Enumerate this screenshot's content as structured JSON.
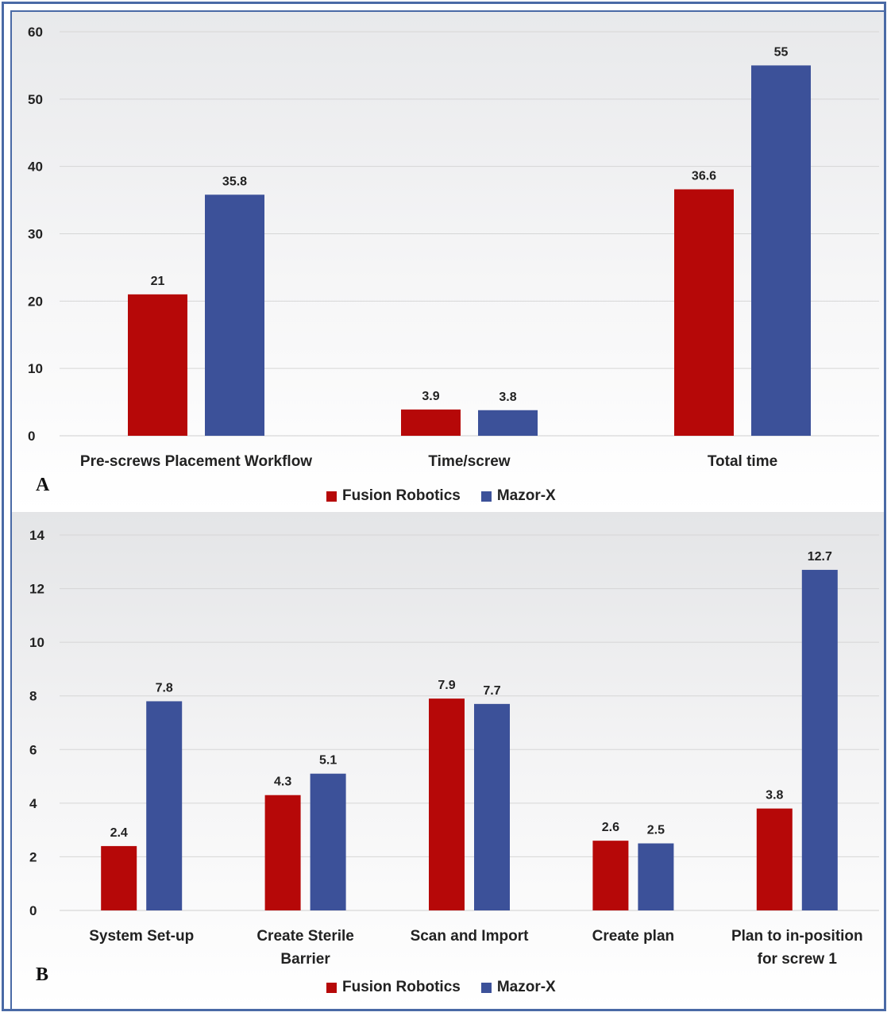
{
  "colors": {
    "fusion": "#b60808",
    "mazor": "#3c5199",
    "grid": "#d6d6d6",
    "frame": "#4a6aa6"
  },
  "panels": {
    "a": {
      "letter": "A"
    },
    "b": {
      "letter": "B"
    }
  },
  "legend": {
    "fusion": "Fusion Robotics",
    "mazor": "Mazor-X"
  },
  "chart_data": [
    {
      "type": "bar",
      "title": "",
      "xlabel": "",
      "ylabel": "",
      "ylim": [
        0,
        60
      ],
      "yticks": [
        "0",
        "10",
        "20",
        "30",
        "40",
        "50",
        "60"
      ],
      "grid": true,
      "legend_position": "bottom",
      "categories": [
        "Pre-screws Placement Workflow",
        "Time/screw",
        "Total time"
      ],
      "series": [
        {
          "name": "Fusion Robotics",
          "values": [
            21,
            3.9,
            36.6
          ],
          "labels": [
            "21",
            "3.9",
            "36.6"
          ]
        },
        {
          "name": "Mazor-X",
          "values": [
            35.8,
            3.8,
            55
          ],
          "labels": [
            "35.8",
            "3.8",
            "55"
          ]
        }
      ]
    },
    {
      "type": "bar",
      "title": "",
      "xlabel": "",
      "ylabel": "",
      "ylim": [
        0,
        14
      ],
      "yticks": [
        "0",
        "2",
        "4",
        "6",
        "8",
        "10",
        "12",
        "14"
      ],
      "grid": true,
      "legend_position": "bottom",
      "categories": [
        [
          "System Set-up"
        ],
        [
          "Create Sterile",
          "Barrier"
        ],
        [
          "Scan and Import"
        ],
        [
          "Create plan"
        ],
        [
          "Plan to in-position",
          "for screw 1"
        ]
      ],
      "series": [
        {
          "name": "Fusion Robotics",
          "values": [
            2.4,
            4.3,
            7.9,
            2.6,
            3.8
          ],
          "labels": [
            "2.4",
            "4.3",
            "7.9",
            "2.6",
            "3.8"
          ]
        },
        {
          "name": "Mazor-X",
          "values": [
            7.8,
            5.1,
            7.7,
            2.5,
            12.7
          ],
          "labels": [
            "7.8",
            "5.1",
            "7.7",
            "2.5",
            "12.7"
          ]
        }
      ]
    }
  ]
}
